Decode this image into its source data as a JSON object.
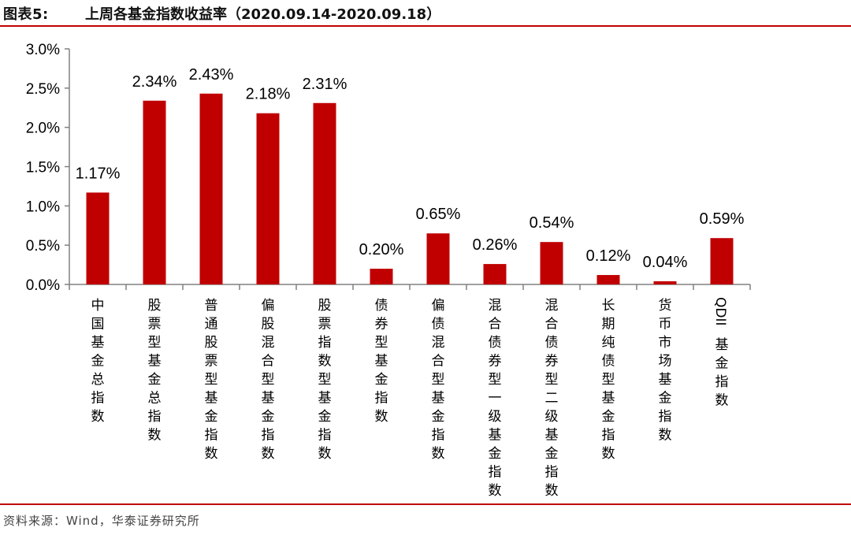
{
  "header": {
    "label": "图表5:",
    "title": "上周各基金指数收益率（2020.09.14-2020.09.18）"
  },
  "footer": {
    "source": "资料来源：Wind，华泰证券研究所"
  },
  "colors": {
    "bar": "#c00000",
    "rule": "#c00000"
  },
  "chart_data": {
    "type": "bar",
    "categories": [
      "中国基金总指数",
      "股票型基金总指数",
      "普通股票型基金指数",
      "偏股混合型基金指数",
      "股票指数型基金指数",
      "债券型基金指数",
      "偏债混合型基金指数",
      "混合债券型一级基金指数",
      "混合债券型二级基金指数",
      "长期纯债型基金指数",
      "货币市场基金指数",
      "QDII基金指数"
    ],
    "values": [
      1.17,
      2.34,
      2.43,
      2.18,
      2.31,
      0.2,
      0.65,
      0.26,
      0.54,
      0.12,
      0.04,
      0.59
    ],
    "data_labels": [
      "1.17%",
      "2.34%",
      "2.43%",
      "2.18%",
      "2.31%",
      "0.20%",
      "0.65%",
      "0.26%",
      "0.54%",
      "0.12%",
      "0.04%",
      "0.59%"
    ],
    "yticks": [
      "0.0%",
      "0.5%",
      "1.0%",
      "1.5%",
      "2.0%",
      "2.5%",
      "3.0%"
    ],
    "ylim": [
      0,
      3.0
    ],
    "unit": "%",
    "grid": false,
    "legend": "none"
  }
}
